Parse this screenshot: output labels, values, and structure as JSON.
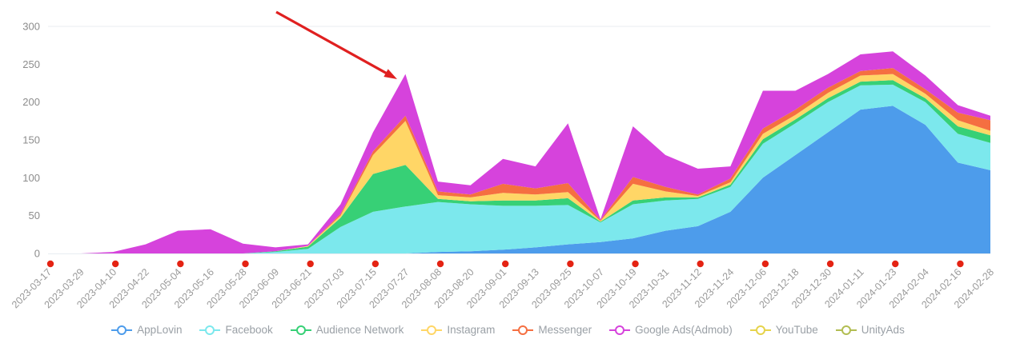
{
  "chart_data": {
    "type": "area",
    "stacked": true,
    "title": "",
    "xlabel": "",
    "ylabel": "",
    "ylim": [
      0,
      300
    ],
    "yticks": [
      0,
      50,
      100,
      150,
      200,
      250,
      300
    ],
    "grid": false,
    "legend_position": "bottom",
    "x": [
      "2023-03-17",
      "2023-03-29",
      "2023-04-10",
      "2023-04-22",
      "2023-05-04",
      "2023-05-16",
      "2023-05-28",
      "2023-06-09",
      "2023-06-21",
      "2023-07-03",
      "2023-07-15",
      "2023-07-27",
      "2023-08-08",
      "2023-08-20",
      "2023-09-01",
      "2023-09-13",
      "2023-09-25",
      "2023-10-07",
      "2023-10-19",
      "2023-10-31",
      "2023-11-12",
      "2023-11-24",
      "2023-12-06",
      "2023-12-18",
      "2023-12-30",
      "2024-01-11",
      "2024-01-23",
      "2024-02-04",
      "2024-02-16",
      "2024-02-28"
    ],
    "series": [
      {
        "name": "AppLovin",
        "color": "#4D9CEB",
        "values": [
          0,
          0,
          0,
          0,
          0,
          0,
          0,
          0,
          0,
          0,
          0,
          0,
          2,
          3,
          5,
          8,
          12,
          15,
          20,
          30,
          36,
          55,
          100,
          130,
          160,
          190,
          195,
          170,
          120,
          110
        ]
      },
      {
        "name": "Facebook",
        "color": "#7CE8ED",
        "values": [
          0,
          0,
          0,
          0,
          0,
          0,
          0,
          2,
          6,
          35,
          55,
          62,
          66,
          62,
          58,
          55,
          52,
          26,
          45,
          40,
          36,
          33,
          45,
          42,
          40,
          32,
          28,
          30,
          38,
          36
        ]
      },
      {
        "name": "Audience Network",
        "color": "#37D076",
        "values": [
          0,
          0,
          0,
          0,
          0,
          0,
          0,
          1,
          3,
          12,
          50,
          55,
          4,
          4,
          7,
          7,
          9,
          1,
          5,
          4,
          2,
          3,
          6,
          5,
          5,
          5,
          6,
          5,
          10,
          10
        ]
      },
      {
        "name": "Instagram",
        "color": "#FFD666",
        "values": [
          0,
          0,
          0,
          0,
          0,
          0,
          0,
          0,
          1,
          3,
          25,
          58,
          5,
          5,
          10,
          8,
          8,
          1,
          22,
          8,
          2,
          3,
          7,
          6,
          7,
          8,
          8,
          6,
          8,
          6
        ]
      },
      {
        "name": "Messenger",
        "color": "#F56F41",
        "values": [
          0,
          0,
          0,
          0,
          0,
          0,
          0,
          0,
          0,
          2,
          5,
          7,
          5,
          4,
          12,
          8,
          12,
          1,
          9,
          6,
          2,
          5,
          7,
          7,
          7,
          6,
          8,
          6,
          10,
          14
        ]
      },
      {
        "name": "Google Ads(Admob)",
        "color": "#D643DC",
        "values": [
          0,
          0,
          2,
          12,
          30,
          32,
          13,
          5,
          2,
          13,
          25,
          55,
          13,
          12,
          33,
          29,
          79,
          1,
          67,
          42,
          34,
          16,
          50,
          25,
          18,
          22,
          22,
          18,
          10,
          6
        ]
      },
      {
        "name": "YouTube",
        "color": "#E6D34B",
        "values": [
          0,
          0,
          0,
          0,
          0,
          0,
          0,
          0,
          0,
          0,
          0,
          0,
          0,
          0,
          0,
          0,
          0,
          0,
          0,
          0,
          0,
          0,
          0,
          0,
          0,
          0,
          0,
          0,
          0,
          0
        ]
      },
      {
        "name": "UnityAds",
        "color": "#B2BD52",
        "values": [
          0,
          0,
          0,
          0,
          0,
          0,
          0,
          0,
          0,
          0,
          0,
          0,
          0,
          0,
          0,
          0,
          0,
          0,
          0,
          0,
          0,
          0,
          0,
          0,
          0,
          0,
          0,
          0,
          0,
          0
        ]
      }
    ],
    "axis_dots": {
      "color": "#E42313",
      "tick_indices": [
        0,
        2,
        4,
        6,
        8,
        10,
        12,
        14,
        16,
        18,
        20,
        22,
        24,
        26,
        28
      ]
    },
    "annotations": [
      {
        "type": "arrow",
        "color": "#E02020",
        "from_xy": [
          345,
          15
        ],
        "to_xy": [
          496,
          99
        ],
        "points_at": "2023-07-27 peak (~237)"
      }
    ]
  },
  "axis_style": {
    "x_label_color": "#999999",
    "y_label_color": "#8c8c8c",
    "gridline_color": "#e8ecf2",
    "legend_text_color": "#9aa0a6"
  }
}
